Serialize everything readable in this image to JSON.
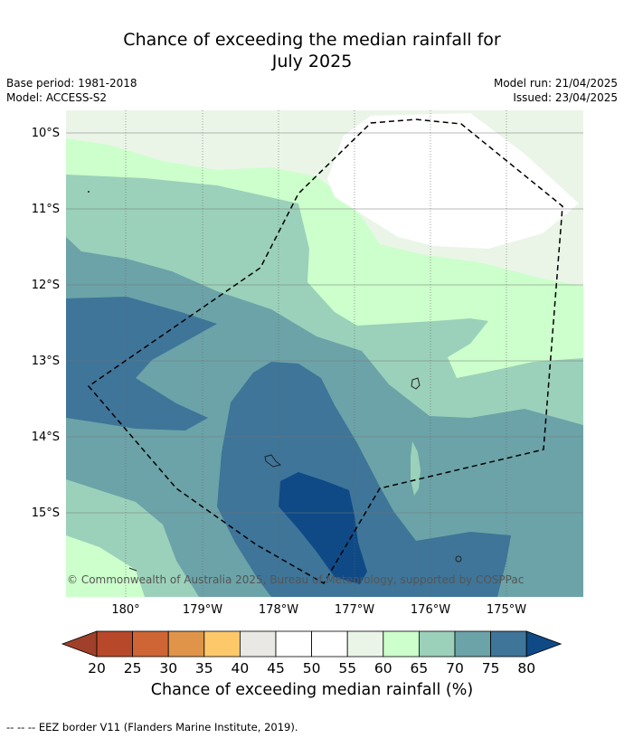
{
  "title_line1": "Chance of exceeding the median rainfall for",
  "title_line2": "July 2025",
  "base_period": "Base period: 1981-2018",
  "model": "Model: ACCESS-S2",
  "model_run": "Model run: 21/04/2025",
  "issued": "Issued: 23/04/2025",
  "copyright": "© Commonwealth of Australia 2025, Bureau of Meteorology, supported by COSPPac",
  "lat_labels": [
    "10°S",
    "11°S",
    "12°S",
    "13°S",
    "14°S",
    "15°S"
  ],
  "lon_labels": [
    "180°",
    "179°W",
    "178°W",
    "177°W",
    "176°W",
    "175°W"
  ],
  "colorbar": {
    "ticks": [
      "20",
      "25",
      "30",
      "35",
      "40",
      "45",
      "50",
      "55",
      "60",
      "65",
      "70",
      "75",
      "80"
    ],
    "colors": [
      "#a0402a",
      "#b8482a",
      "#cf6535",
      "#e0944a",
      "#fcc86a",
      "#e9e8e4",
      "#ffffff",
      "#ffffff",
      "#eaf5e8",
      "#ccffcc",
      "#9bd1ba",
      "#6ba3a8",
      "#3e7599",
      "#0f4a87"
    ],
    "title": "Chance of exceeding median rainfall (%)"
  },
  "colors": {
    "band_55_60": "#eaf5e8",
    "band_60_65": "#ccffcc",
    "band_65_70": "#9bd1ba",
    "band_70_75": "#6ba3a8",
    "band_75_80": "#3e7599",
    "band_80": "#0f4a87"
  },
  "footnote": "--  --  -- EEZ border V11 (Flanders Marine Institute, 2019)."
}
